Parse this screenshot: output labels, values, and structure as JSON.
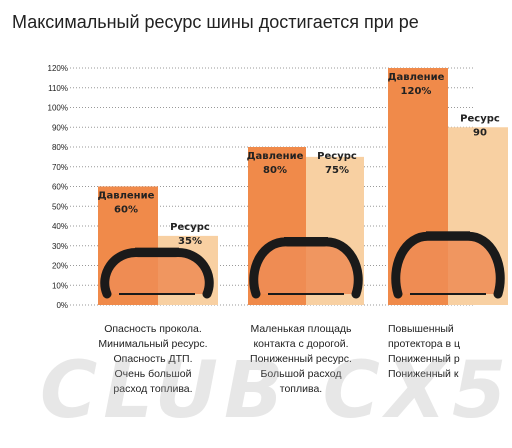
{
  "chart_data": {
    "type": "bar",
    "title": "Максимальный ресурс шины достигается при ре",
    "ylim": [
      0,
      120
    ],
    "yticks": [
      "0%",
      "10%",
      "20%",
      "30%",
      "40%",
      "50%",
      "60%",
      "70%",
      "80%",
      "90%",
      "100%",
      "110%",
      "120%"
    ],
    "grid": true,
    "groups": [
      {
        "pressure_label": "Давление",
        "pressure_value": 60,
        "pressure_text": "60%",
        "resource_label": "Ресурс",
        "resource_value": 35,
        "resource_text": "35%",
        "notes": [
          "Опасность прокола.",
          "Минимальный ресурс.",
          "Опасность ДТП.",
          "Очень большой",
          "расход топлива."
        ]
      },
      {
        "pressure_label": "Давление",
        "pressure_value": 80,
        "pressure_text": "80%",
        "resource_label": "Ресурс",
        "resource_value": 75,
        "resource_text": "75%",
        "notes": [
          "Маленькая площадь",
          "контакта с дорогой.",
          "Пониженный ресурс.",
          "Большой расход",
          "топлива."
        ]
      },
      {
        "pressure_label": "Давление",
        "pressure_value": 120,
        "pressure_text": "120%",
        "resource_label": "Ресурс",
        "resource_value": 90,
        "resource_text": "90",
        "notes": [
          "Повышенный",
          "протектора в ц",
          "Пониженный р",
          "Пониженный к"
        ]
      }
    ]
  },
  "colors": {
    "pressure_bar": "#F08A4A",
    "resource_bar": "#F8D0A2",
    "tire_fill": "#EE8C55",
    "tire_outline": "#1A1A1A",
    "grid": "#999999",
    "label": "#222222"
  },
  "watermark": "CLUB CX5"
}
